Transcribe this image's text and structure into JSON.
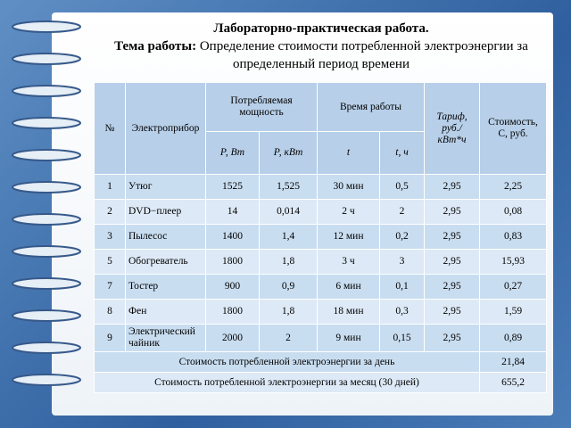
{
  "title": {
    "line1": "Лабораторно-практическая работа.",
    "label": "Тема работы:",
    "text": "Определение стоимости потребленной электроэнергии за определенный период времени"
  },
  "table": {
    "header": {
      "num": "№",
      "device": "Электроприбор",
      "power": "Потребляемая мощность",
      "time": "Время работы",
      "tariff": "Тариф, руб./ кВт*ч",
      "cost": "Стоимость, С, руб.",
      "p_w": "Р, Вт",
      "p_kw": "Р, кВт",
      "t": "t",
      "t_h": "t, ч"
    },
    "rows": [
      [
        "1",
        "Утюг",
        "1525",
        "1,525",
        "30 мин",
        "0,5",
        "2,95",
        "2,25"
      ],
      [
        "2",
        "DVD−плеер",
        "14",
        "0,014",
        "2 ч",
        "2",
        "2,95",
        "0,08"
      ],
      [
        "3",
        "Пылесос",
        "1400",
        "1,4",
        "12 мин",
        "0,2",
        "2,95",
        "0,83"
      ],
      [
        "5",
        "Обогреватель",
        "1800",
        "1,8",
        "3 ч",
        "3",
        "2,95",
        "15,93"
      ],
      [
        "7",
        "Тостер",
        "900",
        "0,9",
        "6 мин",
        "0,1",
        "2,95",
        "0,27"
      ],
      [
        "8",
        "Фен",
        "1800",
        "1,8",
        "18 мин",
        "0,3",
        "2,95",
        "1,59"
      ],
      [
        "9",
        "Электрический чайник",
        "2000",
        "2",
        "9 мин",
        "0,15",
        "2,95",
        "0,89"
      ]
    ],
    "totals": [
      {
        "label": "Стоимость потребленной электроэнергии за день",
        "value": "21,84"
      },
      {
        "label": "Стоимость потребленной электроэнергии за месяц (30 дней)",
        "value": "655,2"
      }
    ]
  }
}
